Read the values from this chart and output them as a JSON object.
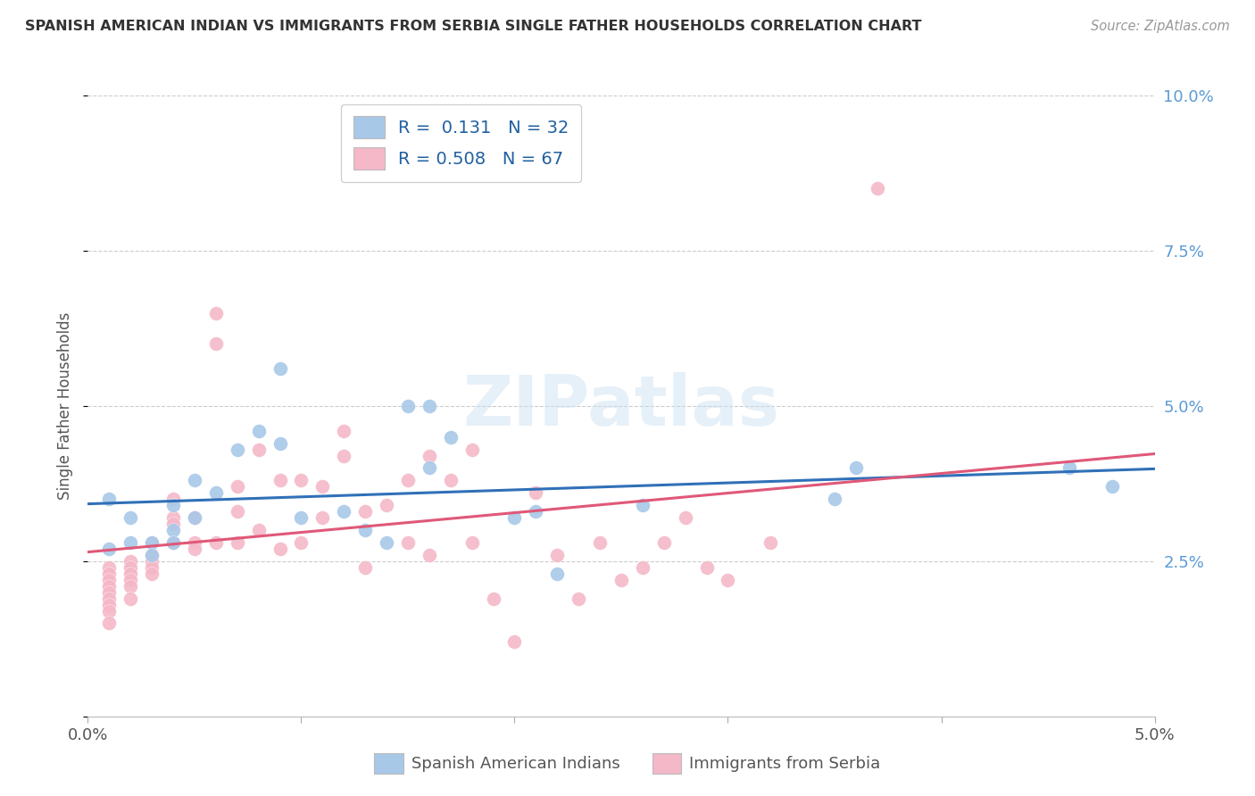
{
  "title": "SPANISH AMERICAN INDIAN VS IMMIGRANTS FROM SERBIA SINGLE FATHER HOUSEHOLDS CORRELATION CHART",
  "source": "Source: ZipAtlas.com",
  "ylabel": "Single Father Households",
  "xlim": [
    0.0,
    0.05
  ],
  "ylim": [
    0.0,
    0.1
  ],
  "xticks": [
    0.0,
    0.01,
    0.02,
    0.03,
    0.04,
    0.05
  ],
  "yticks": [
    0.0,
    0.025,
    0.05,
    0.075,
    0.1
  ],
  "xtick_labels": [
    "0.0%",
    "",
    "",
    "",
    "",
    "5.0%"
  ],
  "ytick_labels": [
    "",
    "2.5%",
    "5.0%",
    "7.5%",
    "10.0%"
  ],
  "blue_color": "#a8c8e8",
  "pink_color": "#f4b8c8",
  "blue_line_color": "#3070b8",
  "pink_line_color": "#e05878",
  "R_blue": 0.131,
  "N_blue": 32,
  "R_pink": 0.508,
  "N_pink": 67,
  "legend_label_blue": "Spanish American Indians",
  "legend_label_pink": "Immigrants from Serbia",
  "watermark": "ZIPatlas",
  "blue_scatter_x": [
    0.001,
    0.001,
    0.002,
    0.002,
    0.003,
    0.003,
    0.004,
    0.004,
    0.004,
    0.005,
    0.005,
    0.006,
    0.007,
    0.008,
    0.009,
    0.009,
    0.01,
    0.012,
    0.013,
    0.014,
    0.015,
    0.016,
    0.016,
    0.017,
    0.02,
    0.021,
    0.022,
    0.026,
    0.035,
    0.036,
    0.046,
    0.048
  ],
  "blue_scatter_y": [
    0.035,
    0.027,
    0.032,
    0.028,
    0.028,
    0.026,
    0.034,
    0.03,
    0.028,
    0.038,
    0.032,
    0.036,
    0.043,
    0.046,
    0.056,
    0.044,
    0.032,
    0.033,
    0.03,
    0.028,
    0.05,
    0.05,
    0.04,
    0.045,
    0.032,
    0.033,
    0.023,
    0.034,
    0.035,
    0.04,
    0.04,
    0.037
  ],
  "pink_scatter_x": [
    0.001,
    0.001,
    0.001,
    0.001,
    0.001,
    0.001,
    0.001,
    0.001,
    0.001,
    0.002,
    0.002,
    0.002,
    0.002,
    0.002,
    0.002,
    0.003,
    0.003,
    0.003,
    0.003,
    0.003,
    0.004,
    0.004,
    0.004,
    0.004,
    0.005,
    0.005,
    0.005,
    0.006,
    0.006,
    0.006,
    0.007,
    0.007,
    0.007,
    0.008,
    0.008,
    0.009,
    0.009,
    0.01,
    0.01,
    0.011,
    0.011,
    0.012,
    0.012,
    0.013,
    0.013,
    0.014,
    0.015,
    0.015,
    0.016,
    0.016,
    0.017,
    0.018,
    0.018,
    0.019,
    0.02,
    0.021,
    0.022,
    0.023,
    0.024,
    0.025,
    0.026,
    0.027,
    0.028,
    0.029,
    0.03,
    0.032,
    0.037
  ],
  "pink_scatter_y": [
    0.024,
    0.023,
    0.022,
    0.021,
    0.02,
    0.019,
    0.018,
    0.017,
    0.015,
    0.025,
    0.024,
    0.023,
    0.022,
    0.021,
    0.019,
    0.028,
    0.026,
    0.025,
    0.024,
    0.023,
    0.035,
    0.032,
    0.031,
    0.028,
    0.032,
    0.028,
    0.027,
    0.065,
    0.06,
    0.028,
    0.037,
    0.033,
    0.028,
    0.043,
    0.03,
    0.038,
    0.027,
    0.038,
    0.028,
    0.037,
    0.032,
    0.046,
    0.042,
    0.033,
    0.024,
    0.034,
    0.038,
    0.028,
    0.042,
    0.026,
    0.038,
    0.043,
    0.028,
    0.019,
    0.012,
    0.036,
    0.026,
    0.019,
    0.028,
    0.022,
    0.024,
    0.028,
    0.032,
    0.024,
    0.022,
    0.028,
    0.085
  ]
}
